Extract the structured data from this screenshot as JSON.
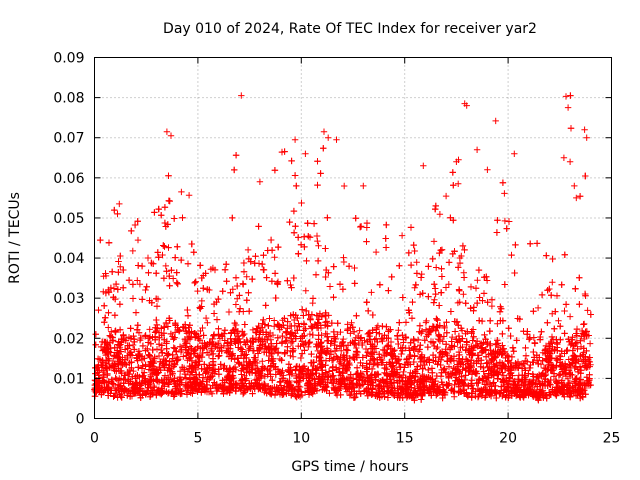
{
  "chart_data": {
    "type": "scatter",
    "title": "Day 010 of 2024, Rate Of TEC Index for receiver yar2",
    "xlabel": "GPS time / hours",
    "ylabel": "ROTI / TECUs",
    "xlim": [
      0,
      25
    ],
    "ylim": [
      0,
      0.09
    ],
    "xticks": [
      "0",
      "5",
      "10",
      "15",
      "20",
      "25"
    ],
    "yticks": [
      "0",
      "0.01",
      "0.02",
      "0.03",
      "0.04",
      "0.05",
      "0.06",
      "0.07",
      "0.08",
      "0.09"
    ],
    "grid": true,
    "marker": "+",
    "color": "#ff0000",
    "x_range_of_points": [
      0,
      24
    ],
    "envelope": {
      "x": [
        0,
        0.5,
        1,
        1.5,
        2,
        2.5,
        3,
        3.5,
        4,
        4.5,
        5,
        5.5,
        6,
        6.5,
        7,
        7.5,
        8,
        8.5,
        9,
        9.5,
        10,
        10.5,
        11,
        11.5,
        12,
        12.5,
        13,
        13.5,
        14,
        14.5,
        15,
        15.5,
        16,
        16.5,
        17,
        17.5,
        18,
        18.5,
        19,
        19.5,
        20,
        20.5,
        21,
        21.5,
        22,
        22.5,
        23,
        23.5,
        24
      ],
      "typical_low": [
        0.006,
        0.007,
        0.006,
        0.006,
        0.006,
        0.006,
        0.006,
        0.006,
        0.006,
        0.007,
        0.007,
        0.007,
        0.007,
        0.007,
        0.007,
        0.007,
        0.007,
        0.007,
        0.006,
        0.006,
        0.006,
        0.007,
        0.007,
        0.007,
        0.006,
        0.006,
        0.006,
        0.006,
        0.006,
        0.006,
        0.005,
        0.005,
        0.006,
        0.006,
        0.006,
        0.006,
        0.006,
        0.006,
        0.006,
        0.006,
        0.006,
        0.006,
        0.006,
        0.005,
        0.006,
        0.006,
        0.006,
        0.006,
        0.006
      ],
      "typical_high": [
        0.025,
        0.035,
        0.04,
        0.038,
        0.035,
        0.04,
        0.042,
        0.045,
        0.045,
        0.042,
        0.04,
        0.038,
        0.038,
        0.04,
        0.04,
        0.04,
        0.042,
        0.042,
        0.045,
        0.048,
        0.048,
        0.048,
        0.048,
        0.045,
        0.042,
        0.04,
        0.04,
        0.04,
        0.042,
        0.04,
        0.038,
        0.04,
        0.042,
        0.045,
        0.045,
        0.045,
        0.042,
        0.04,
        0.035,
        0.035,
        0.03,
        0.025,
        0.025,
        0.03,
        0.035,
        0.035,
        0.035,
        0.04,
        0.04
      ],
      "peak": [
        0.044,
        0.05,
        0.054,
        0.052,
        0.05,
        0.053,
        0.058,
        0.072,
        0.055,
        0.057,
        0.052,
        0.047,
        0.05,
        0.05,
        0.081,
        0.05,
        0.05,
        0.059,
        0.07,
        0.067,
        0.066,
        0.06,
        0.072,
        0.069,
        0.06,
        0.057,
        0.05,
        0.05,
        0.05,
        0.05,
        0.05,
        0.05,
        0.063,
        0.055,
        0.063,
        0.064,
        0.079,
        0.067,
        0.062,
        0.074,
        0.055,
        0.066,
        0.055,
        0.053,
        0.055,
        0.06,
        0.081,
        0.072,
        0.073
      ]
    },
    "outliers": [
      {
        "x": 7.1,
        "y": 0.0805
      },
      {
        "x": 22.8,
        "y": 0.0803
      },
      {
        "x": 17.9,
        "y": 0.0785
      },
      {
        "x": 18.0,
        "y": 0.078
      },
      {
        "x": 22.9,
        "y": 0.0775
      },
      {
        "x": 19.4,
        "y": 0.0742
      },
      {
        "x": 3.5,
        "y": 0.0715
      },
      {
        "x": 3.7,
        "y": 0.0705
      },
      {
        "x": 11.1,
        "y": 0.0715
      },
      {
        "x": 11.3,
        "y": 0.07
      },
      {
        "x": 11.7,
        "y": 0.0695
      },
      {
        "x": 9.7,
        "y": 0.0695
      },
      {
        "x": 23.7,
        "y": 0.072
      },
      {
        "x": 23.8,
        "y": 0.07
      },
      {
        "x": 17.5,
        "y": 0.064
      },
      {
        "x": 17.6,
        "y": 0.0645
      },
      {
        "x": 18.5,
        "y": 0.067
      },
      {
        "x": 20.3,
        "y": 0.066
      },
      {
        "x": 10.2,
        "y": 0.066
      },
      {
        "x": 15.9,
        "y": 0.063
      },
      {
        "x": 19.0,
        "y": 0.062
      },
      {
        "x": 22.7,
        "y": 0.065
      },
      {
        "x": 23.0,
        "y": 0.064
      },
      {
        "x": 23.2,
        "y": 0.058
      },
      {
        "x": 23.3,
        "y": 0.055
      },
      {
        "x": 1.2,
        "y": 0.0535
      },
      {
        "x": 4.2,
        "y": 0.0565
      },
      {
        "x": 8.0,
        "y": 0.059
      },
      {
        "x": 13.0,
        "y": 0.058
      }
    ]
  }
}
